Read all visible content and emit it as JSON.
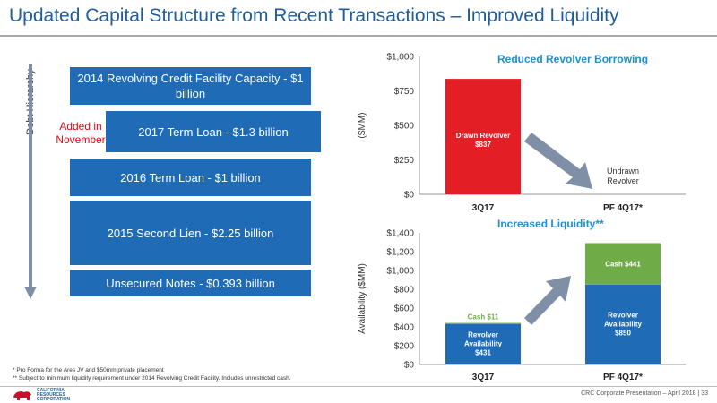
{
  "title": "Updated Capital Structure from Recent Transactions – Improved Liquidity",
  "hierarchy_label": "Debt Hierarchy",
  "added_label": "Added in November",
  "debt_boxes": [
    "2014 Revolving Credit Facility Capacity - $1 billion",
    "2017 Term Loan - $1.3 billion",
    "2016 Term Loan - $1 billion",
    "2015 Second Lien - $2.25 billion",
    "Unsecured Notes - $0.393 billion"
  ],
  "footnotes": [
    "* Pro Forma for the Ares JV and $50mm private placement",
    "** Subject to minimum liquidity requirement under 2014 Revolving Credit Facility. Includes unrestricted cash."
  ],
  "footer": "CRC Corporate Presentation – April 2018  |  33",
  "logo_text": [
    "CALIFORNIA",
    "RESOURCES",
    "CORPORATION"
  ],
  "colors": {
    "title": "#1f5d9e",
    "box": "#1f6bb5",
    "drawn": "#e31e24",
    "cash": "#6fac46",
    "revolver": "#1f6bb5",
    "arrow": "#7f8fa6"
  },
  "chart_data": [
    {
      "type": "bar",
      "title": "Reduced Revolver Borrowing",
      "ylabel": "($MM)",
      "categories": [
        "3Q17",
        "PF 4Q17*"
      ],
      "series": [
        {
          "values": [
            837,
            0
          ]
        }
      ],
      "ylim": [
        0,
        1000
      ],
      "yticks": [
        0,
        250,
        500,
        750,
        1000
      ],
      "ytick_labels": [
        "$0",
        "$250",
        "$500",
        "$750",
        "$1,000"
      ],
      "bar_label": "Drawn Revolver",
      "bar_value_label": "$837",
      "annotation": "Undrawn Revolver"
    },
    {
      "type": "bar",
      "stacked": true,
      "title": "Increased Liquidity**",
      "ylabel": "Availability ($MM)",
      "categories": [
        "3Q17",
        "PF 4Q17*"
      ],
      "series": [
        {
          "name": "Revolver Availability",
          "values": [
            431,
            850
          ],
          "labels": [
            "$431",
            "$850"
          ]
        },
        {
          "name": "Cash",
          "values": [
            11,
            441
          ],
          "labels": [
            "$11",
            "$441"
          ]
        }
      ],
      "ylim": [
        0,
        1400
      ],
      "yticks": [
        0,
        200,
        400,
        600,
        800,
        1000,
        1200,
        1400
      ],
      "ytick_labels": [
        "$0",
        "$200",
        "$400",
        "$600",
        "$800",
        "$1,000",
        "$1,200",
        "$1,400"
      ]
    }
  ]
}
